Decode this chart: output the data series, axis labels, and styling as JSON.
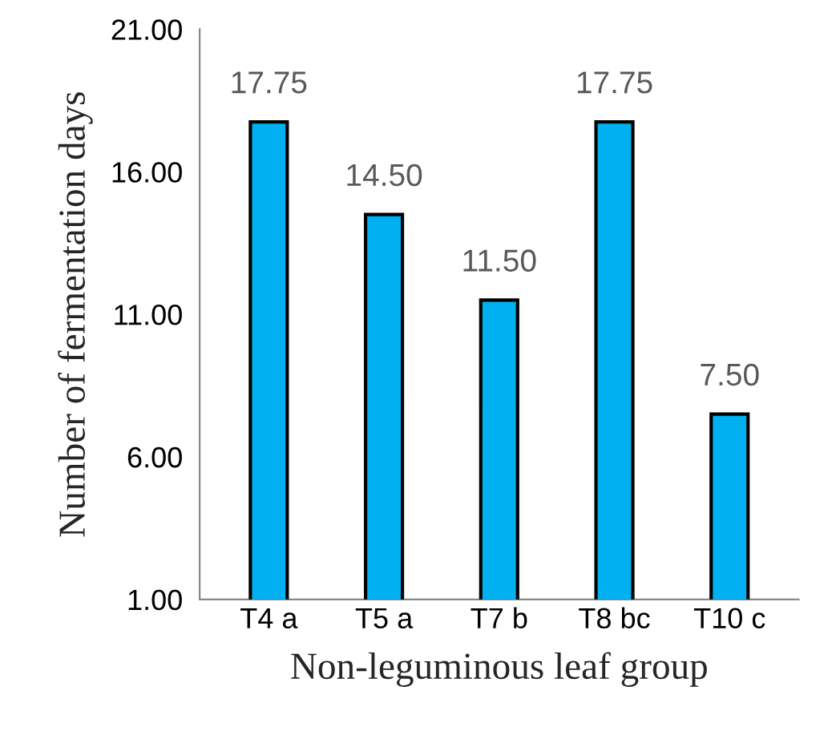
{
  "chart_data": {
    "type": "bar",
    "xlabel": "Non-leguminous leaf group",
    "ylabel": "Number of fermentation days",
    "categories": [
      "T4 a",
      "T5 a",
      "T7 b",
      "T8 bc",
      "T10 c"
    ],
    "values": [
      17.75,
      14.5,
      11.5,
      17.75,
      7.5
    ],
    "value_labels": [
      "17.75",
      "14.50",
      "11.50",
      "17.75",
      "7.50"
    ],
    "color": "#00b0f0",
    "ylim": [
      1,
      21
    ],
    "yticks": [
      {
        "value": 1,
        "label": "1.00"
      },
      {
        "value": 6,
        "label": "6.00"
      },
      {
        "value": 11,
        "label": "11.00"
      },
      {
        "value": 16,
        "label": "16.00"
      },
      {
        "value": 21,
        "label": "21.00"
      }
    ],
    "grid": false,
    "legend": false
  }
}
